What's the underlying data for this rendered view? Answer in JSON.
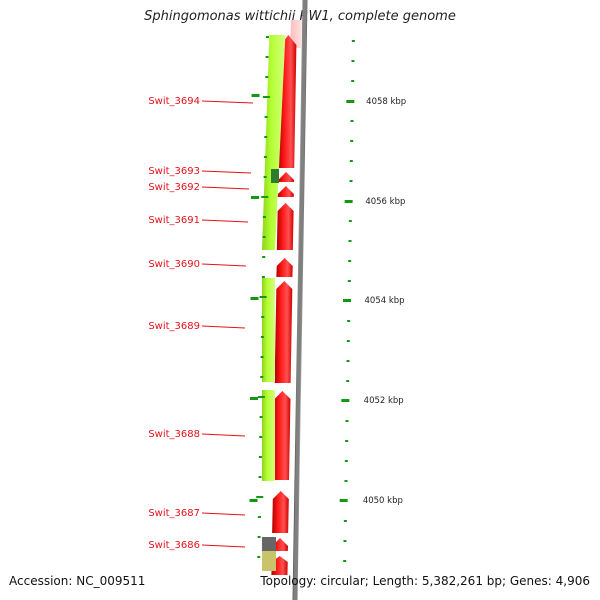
{
  "title": "Sphingomonas wittichii RW1, complete genome",
  "accession": "Accession: NC_009511",
  "topology": "Topology: circular; Length: 5,382,261 bp; Genes: 4,906",
  "colors": {
    "cds_forward": "#ff1a1a",
    "cds_reverse_light": "#b3ff33",
    "backbone": "#808080",
    "ruler": "#119911",
    "label": "#e8101a"
  },
  "gene_labels": [
    "Swit_3694",
    "Swit_3693",
    "Swit_3692",
    "Swit_3691",
    "Swit_3690",
    "Swit_3689",
    "Swit_3688",
    "Swit_3687",
    "Swit_3686"
  ],
  "ruler_labels": [
    "4058 kbp",
    "4056 kbp",
    "4054 kbp",
    "4052 kbp",
    "4050 kbp"
  ]
}
